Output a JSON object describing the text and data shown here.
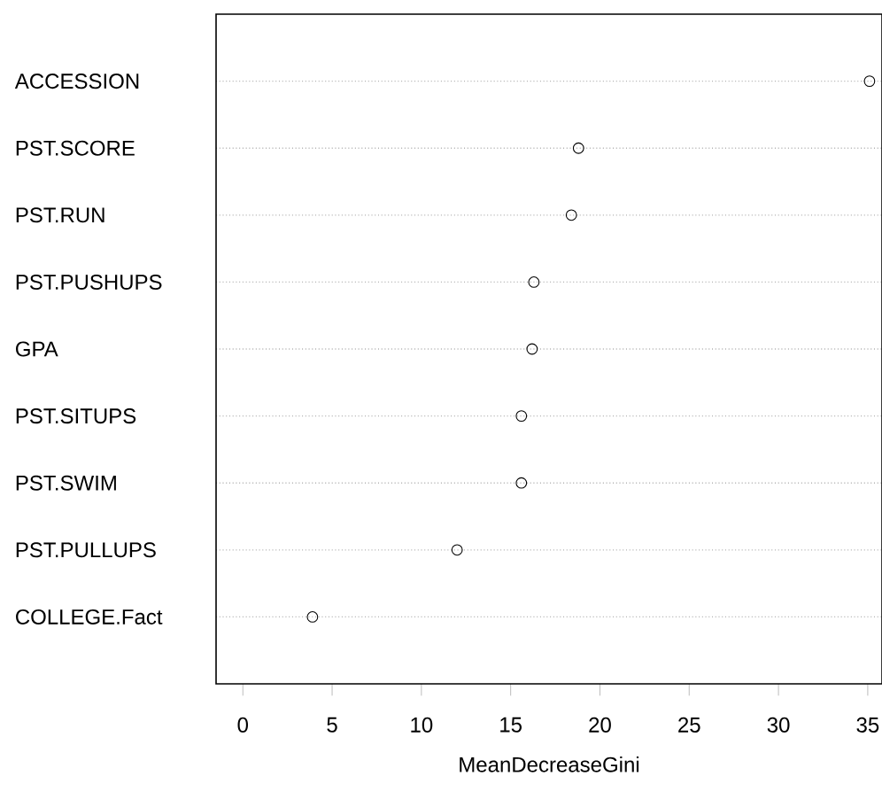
{
  "chart_data": {
    "type": "scatter",
    "orientation": "horizontal",
    "categories": [
      "ACCESSION",
      "PST.SCORE",
      "PST.RUN",
      "PST.PUSHUPS",
      "GPA",
      "PST.SITUPS",
      "PST.SWIM",
      "PST.PULLUPS",
      "COLLEGE.Fact"
    ],
    "values": [
      35.1,
      18.8,
      18.4,
      16.3,
      16.2,
      15.6,
      15.6,
      12.0,
      3.9
    ],
    "color": "#000000",
    "xlabel": "MeanDecreaseGini",
    "xlim": [
      -1.5,
      35.8
    ],
    "xticks": [
      0,
      5,
      10,
      15,
      20,
      25,
      30,
      35
    ],
    "grid": "y",
    "marker": "circle"
  }
}
